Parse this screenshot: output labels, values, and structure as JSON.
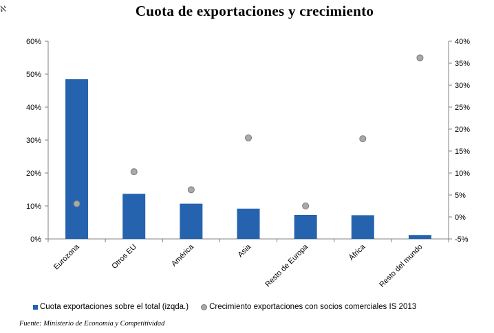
{
  "chart_data": {
    "type": "bar+scatter",
    "title": "Cuota de exportaciones y crecimiento",
    "categories": [
      "Eurozona",
      "Otros EU",
      "América",
      "Asia",
      "Resto de Europa",
      "África",
      "Resto del mundo"
    ],
    "series": [
      {
        "name": "Cuota exportaciones sobre el total  (izqda.)",
        "type": "bar",
        "axis": "left",
        "color": "#2563ae",
        "values": [
          48.5,
          13.7,
          10.7,
          9.2,
          7.3,
          7.2,
          1.2
        ]
      },
      {
        "name": "Crecimiento exportaciones con socios comerciales IS 2013",
        "type": "scatter",
        "axis": "right",
        "color": "#a9a9a9",
        "values": [
          3.0,
          10.3,
          6.2,
          18.0,
          2.5,
          17.8,
          36.2
        ]
      }
    ],
    "y_left": {
      "ylim": [
        0,
        60
      ],
      "step": 10,
      "ticks": [
        "0%",
        "10%",
        "20%",
        "30%",
        "40%",
        "50%",
        "60%"
      ]
    },
    "y_right": {
      "ylim": [
        -5,
        40
      ],
      "step": 5,
      "ticks": [
        "-5%",
        "0%",
        "5%",
        "10%",
        "15%",
        "20%",
        "25%",
        "30%",
        "35%",
        "40%"
      ]
    },
    "legend_position": "bottom",
    "grid": false
  },
  "source_note": "Fuente: Ministerio de Economía y Competitividad",
  "corner_mark": "ℵ"
}
